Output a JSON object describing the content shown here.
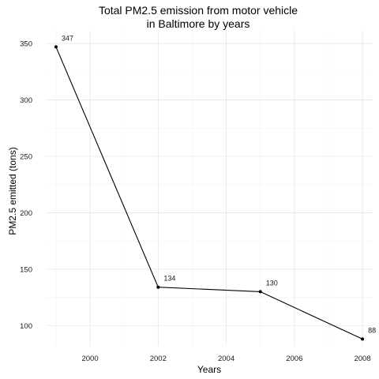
{
  "chart_data": {
    "type": "line",
    "title_lines": [
      "Total PM2.5 emission from motor vehicle",
      "in Baltimore by years"
    ],
    "xlabel": "Years",
    "ylabel": "PM2.5 emitted (tons)",
    "xlim": [
      1998.7,
      2008.3
    ],
    "ylim": [
      82,
      362
    ],
    "x_ticks": [
      2000,
      2002,
      2004,
      2006,
      2008
    ],
    "y_ticks": [
      100,
      150,
      200,
      250,
      300,
      350
    ],
    "x_minor": [
      1999,
      2001,
      2003,
      2005,
      2007
    ],
    "y_minor": [
      125,
      175,
      225,
      275,
      325
    ],
    "grid": true,
    "series": [
      {
        "x": [
          1999,
          2002,
          2005,
          2008
        ],
        "values": [
          347,
          134,
          130,
          88
        ],
        "labels": [
          "347",
          "134",
          "130",
          "88"
        ],
        "color": "#000000"
      }
    ]
  }
}
